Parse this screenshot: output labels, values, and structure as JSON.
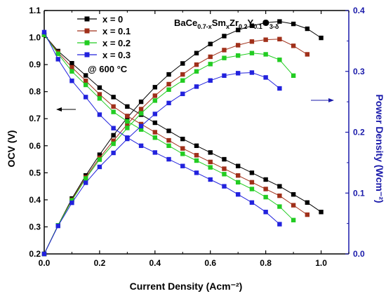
{
  "chart_data": {
    "type": "line",
    "xlabel": "Current Density (Acm⁻²)",
    "y_left_label": "OCV (V)",
    "y_right_label": "Power Density (Wcm⁻²)",
    "formula": {
      "parts": [
        "BaCe",
        "0.7-x",
        "Sm",
        "x",
        "Zr",
        "0.2",
        "Y",
        "0.1",
        "O",
        "3-δ"
      ],
      "subscript": [
        false,
        true,
        false,
        true,
        false,
        true,
        false,
        true,
        false,
        true
      ]
    },
    "condition": "@ 600 °C",
    "xlim": [
      0,
      1.1
    ],
    "ylim_left": [
      0.2,
      1.1
    ],
    "ylim_right": [
      0,
      0.4
    ],
    "x_ticks": [
      "0.0",
      "0.2",
      "0.4",
      "0.6",
      "0.8",
      "1.0"
    ],
    "y_left_ticks": [
      "0.2",
      "0.3",
      "0.4",
      "0.5",
      "0.6",
      "0.7",
      "0.8",
      "0.9",
      "1.0",
      "1.1"
    ],
    "y_right_ticks": [
      "0.0",
      "0.1",
      "0.2",
      "0.3",
      "0.4"
    ],
    "grid": false,
    "legend_position": "top-left",
    "arrow_left_target": "OCV axis (left)",
    "arrow_right_target": "Power density axis (right)",
    "left_axis_color": "#000000",
    "right_axis_color": "#1a1aaa",
    "series": [
      {
        "name": "x = 0",
        "color": "#000000",
        "x": [
          0,
          0.05,
          0.1,
          0.15,
          0.2,
          0.25,
          0.3,
          0.35,
          0.4,
          0.45,
          0.5,
          0.55,
          0.6,
          0.65,
          0.7,
          0.75,
          0.8,
          0.85,
          0.9,
          0.95,
          1.0
        ],
        "ocv": [
          1.01,
          0.95,
          0.905,
          0.86,
          0.815,
          0.78,
          0.745,
          0.715,
          0.685,
          0.655,
          0.625,
          0.6,
          0.575,
          0.55,
          0.525,
          0.5,
          0.475,
          0.45,
          0.42,
          0.39,
          0.355
        ],
        "power": [
          0,
          0.047,
          0.091,
          0.129,
          0.163,
          0.195,
          0.224,
          0.25,
          0.274,
          0.295,
          0.313,
          0.33,
          0.345,
          0.358,
          0.368,
          0.375,
          0.38,
          0.382,
          0.378,
          0.37,
          0.355
        ]
      },
      {
        "name": "x = 0.1",
        "color": "#a0301a",
        "x": [
          0,
          0.05,
          0.1,
          0.15,
          0.2,
          0.25,
          0.3,
          0.35,
          0.4,
          0.45,
          0.5,
          0.55,
          0.6,
          0.65,
          0.7,
          0.75,
          0.8,
          0.85,
          0.9,
          0.95
        ],
        "ocv": [
          1.01,
          0.945,
          0.89,
          0.84,
          0.79,
          0.745,
          0.71,
          0.68,
          0.65,
          0.62,
          0.59,
          0.565,
          0.54,
          0.515,
          0.49,
          0.465,
          0.44,
          0.415,
          0.38,
          0.345
        ],
        "power": [
          0,
          0.047,
          0.089,
          0.126,
          0.158,
          0.186,
          0.213,
          0.238,
          0.26,
          0.279,
          0.295,
          0.311,
          0.324,
          0.335,
          0.343,
          0.349,
          0.352,
          0.353,
          0.342,
          0.328
        ]
      },
      {
        "name": "x = 0.2",
        "color": "#22cc22",
        "x": [
          0,
          0.05,
          0.1,
          0.15,
          0.2,
          0.25,
          0.3,
          0.35,
          0.4,
          0.45,
          0.5,
          0.55,
          0.6,
          0.65,
          0.7,
          0.75,
          0.8,
          0.85,
          0.9
        ],
        "ocv": [
          1.01,
          0.94,
          0.875,
          0.825,
          0.775,
          0.725,
          0.69,
          0.66,
          0.63,
          0.6,
          0.57,
          0.545,
          0.52,
          0.495,
          0.465,
          0.44,
          0.41,
          0.375,
          0.325
        ],
        "power": [
          0,
          0.047,
          0.088,
          0.124,
          0.155,
          0.181,
          0.207,
          0.231,
          0.252,
          0.27,
          0.285,
          0.3,
          0.312,
          0.322,
          0.326,
          0.33,
          0.328,
          0.319,
          0.293
        ]
      },
      {
        "name": "x = 0.3",
        "color": "#2222dd",
        "x": [
          0,
          0.05,
          0.1,
          0.15,
          0.2,
          0.25,
          0.3,
          0.35,
          0.4,
          0.45,
          0.5,
          0.55,
          0.6,
          0.65,
          0.7,
          0.75,
          0.8,
          0.85
        ],
        "ocv": [
          1.02,
          0.92,
          0.84,
          0.78,
          0.715,
          0.665,
          0.63,
          0.6,
          0.575,
          0.55,
          0.525,
          0.5,
          0.475,
          0.45,
          0.42,
          0.39,
          0.355,
          0.31
        ],
        "power": [
          0,
          0.046,
          0.084,
          0.117,
          0.143,
          0.166,
          0.189,
          0.21,
          0.23,
          0.248,
          0.263,
          0.275,
          0.285,
          0.293,
          0.297,
          0.298,
          0.29,
          0.272
        ]
      }
    ]
  }
}
